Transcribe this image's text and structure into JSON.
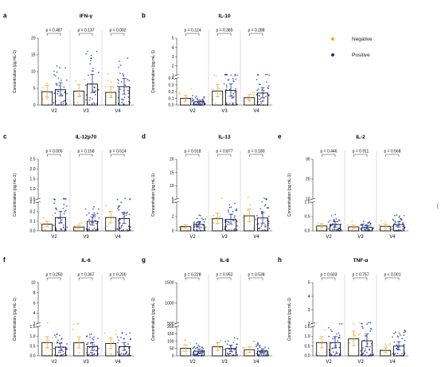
{
  "legend": {
    "items": [
      {
        "label": "Negative",
        "color": "#f5a623"
      },
      {
        "label": "Positive",
        "color": "#1f2f9e"
      }
    ]
  },
  "y_label": "Concentration (pg mL-1)",
  "edge_mark": "(",
  "chart_data": [
    {
      "type": "bar",
      "letter": "a",
      "title": "IFN-γ",
      "categories": [
        "V2",
        "V3",
        "V4"
      ],
      "series": [
        {
          "name": "Negative",
          "values": [
            4.0,
            4.2,
            3.8
          ]
        },
        {
          "name": "Positive",
          "values": [
            4.6,
            6.3,
            5.5
          ]
        }
      ],
      "pvalues": [
        "p = 0.487",
        "p = 0.137",
        "p = 0.002"
      ],
      "ylabel": "Concentration (pg mL-1)",
      "axis": {
        "break": null,
        "segments": [
          {
            "min": 0,
            "max": 20,
            "ticks": [
              0,
              5,
              10,
              15,
              20
            ],
            "labels": [
              "0",
              "5",
              "10",
              "15",
              "20"
            ]
          }
        ]
      }
    },
    {
      "type": "bar",
      "letter": "b",
      "title": "IL-10",
      "categories": [
        "V2",
        "V3",
        "V4"
      ],
      "series": [
        {
          "name": "Negative",
          "values": [
            0.1,
            0.21,
            0.11
          ]
        },
        {
          "name": "Positive",
          "values": [
            0.05,
            0.22,
            0.18
          ]
        }
      ],
      "pvalues": [
        "p = 0.124",
        "p = 0.385",
        "p = 0.288"
      ],
      "ylabel": "Concentration (pg mL-1)",
      "axis": {
        "break": true,
        "segments": [
          {
            "min": 0,
            "max": 0.4,
            "ticks": [
              0,
              0.1,
              0.2,
              0.3,
              0.4
            ],
            "labels": [
              "0.0",
              "0.1",
              "0.2",
              "0.3",
              "0.4"
            ]
          },
          {
            "min": 1,
            "max": 5,
            "ticks": [
              1,
              2,
              3,
              4,
              5
            ],
            "labels": [
              "1",
              "2",
              "3",
              "4",
              "5"
            ]
          }
        ]
      }
    },
    {
      "type": "bar",
      "letter": "c",
      "title": "IL-12p70",
      "categories": [
        "V2",
        "V3",
        "V4"
      ],
      "series": [
        {
          "name": "Negative",
          "values": [
            0.07,
            0.04,
            0.14
          ]
        },
        {
          "name": "Positive",
          "values": [
            0.14,
            0.1,
            0.13
          ]
        }
      ],
      "pvalues": [
        "p = 0.005",
        "p = 0.158",
        "p = 0.614"
      ],
      "ylabel": "Concentration (pg mL-1)",
      "axis": {
        "break": true,
        "segments": [
          {
            "min": 0,
            "max": 0.3,
            "ticks": [
              0,
              0.1,
              0.2,
              0.3
            ],
            "labels": [
              "0.0",
              "0.1",
              "0.2",
              "0.3"
            ]
          },
          {
            "min": 0.5,
            "max": 2.5,
            "ticks": [
              0.5,
              1.0,
              1.5,
              2.0,
              2.5
            ],
            "labels": [
              "0.5",
              "1.0",
              "1.5",
              "2.0",
              "2.5"
            ]
          }
        ]
      }
    },
    {
      "type": "bar",
      "letter": "d",
      "title": "IL-13",
      "categories": [
        "V2",
        "V3",
        "V4"
      ],
      "series": [
        {
          "name": "Negative",
          "values": [
            0.6,
            1.7,
            2.1
          ]
        },
        {
          "name": "Positive",
          "values": [
            0.9,
            1.6,
            1.8
          ]
        }
      ],
      "pvalues": [
        "p = 0.918",
        "p = 0.877",
        "p = 0.180"
      ],
      "ylabel": "Concentration (pg mL-1)",
      "axis": {
        "break": true,
        "segments": [
          {
            "min": 0,
            "max": 4,
            "ticks": [
              0,
              2,
              4
            ],
            "labels": [
              "0",
              "2",
              "4"
            ]
          },
          {
            "min": 5,
            "max": 20,
            "ticks": [
              5,
              10,
              15,
              20
            ],
            "labels": [
              "5",
              "10",
              "15",
              "20"
            ]
          }
        ]
      }
    },
    {
      "type": "bar",
      "letter": "e",
      "title": "IL-2",
      "categories": [
        "V2",
        "V3",
        "V4"
      ],
      "series": [
        {
          "name": "Negative",
          "values": [
            0.17,
            0.14,
            0.16
          ]
        },
        {
          "name": "Positive",
          "values": [
            0.22,
            0.12,
            0.22
          ]
        }
      ],
      "pvalues": [
        "p = 0.446",
        "p = 0.911",
        "p = 0.568"
      ],
      "ylabel": "Concentration (pg mL-1)",
      "axis": {
        "break": true,
        "segments": [
          {
            "min": 0,
            "max": 1.0,
            "ticks": [
              0,
              0.5,
              1.0
            ],
            "labels": [
              "0.0",
              "0.5",
              "1.0"
            ]
          },
          {
            "min": 10,
            "max": 30,
            "ticks": [
              10,
              20,
              30
            ],
            "labels": [
              "10",
              "20",
              "30"
            ]
          }
        ]
      }
    },
    {
      "type": "bar",
      "letter": "f",
      "title": "IL-6",
      "categories": [
        "V2",
        "V3",
        "V4"
      ],
      "series": [
        {
          "name": "Negative",
          "values": [
            0.68,
            0.67,
            0.63
          ]
        },
        {
          "name": "Positive",
          "values": [
            0.45,
            0.47,
            0.47
          ]
        }
      ],
      "pvalues": [
        "p = 0.250",
        "p = 0.367",
        "p = 0.200"
      ],
      "ylabel": "Concentration (pg mL-1)",
      "axis": {
        "break": true,
        "segments": [
          {
            "min": 0,
            "max": 1.5,
            "ticks": [
              0,
              0.5,
              1.0,
              1.5
            ],
            "labels": [
              "0.0",
              "0.5",
              "1.0",
              "1.5"
            ]
          },
          {
            "min": 2,
            "max": 10,
            "ticks": [
              2,
              4,
              6,
              8,
              10
            ],
            "labels": [
              "2",
              "4",
              "6",
              "8",
              "10"
            ]
          }
        ]
      }
    },
    {
      "type": "bar",
      "letter": "g",
      "title": "IL-8",
      "categories": [
        "V2",
        "V3",
        "V4"
      ],
      "series": [
        {
          "name": "Negative",
          "values": [
            52,
            62,
            42
          ]
        },
        {
          "name": "Positive",
          "values": [
            32,
            50,
            33
          ]
        }
      ],
      "pvalues": [
        "p = 0.228",
        "p = 0.952",
        "p = 0.538"
      ],
      "ylabel": "Concentration (pg mL-1)",
      "axis": {
        "break": true,
        "segments": [
          {
            "min": 0,
            "max": 200,
            "ticks": [
              0,
              50,
              100,
              150,
              200
            ],
            "labels": [
              "0",
              "50",
              "100",
              "150",
              "200"
            ]
          },
          {
            "min": 500,
            "max": 1500,
            "ticks": [
              500,
              1000,
              1500
            ],
            "labels": [
              "500",
              "1000",
              "1500"
            ]
          }
        ]
      }
    },
    {
      "type": "bar",
      "letter": "h",
      "title": "TNF-α",
      "categories": [
        "V2",
        "V3",
        "V4"
      ],
      "series": [
        {
          "name": "Negative",
          "values": [
            0.68,
            0.87,
            0.28
          ]
        },
        {
          "name": "Positive",
          "values": [
            0.68,
            0.77,
            0.5
          ]
        }
      ],
      "pvalues": [
        "p = 0.603",
        "p = 0.757",
        "p < 0.001"
      ],
      "ylabel": "Concentration (pg mL-1)",
      "axis": {
        "break": true,
        "segments": [
          {
            "min": 0,
            "max": 1.5,
            "ticks": [
              0,
              0.5,
              1.0,
              1.5
            ],
            "labels": [
              "0.0",
              "0.5",
              "1.0",
              "1.5"
            ]
          },
          {
            "min": 2,
            "max": 5,
            "ticks": [
              2,
              3,
              4,
              5
            ],
            "labels": [
              "2",
              "3",
              "4",
              "5"
            ]
          }
        ]
      }
    }
  ]
}
